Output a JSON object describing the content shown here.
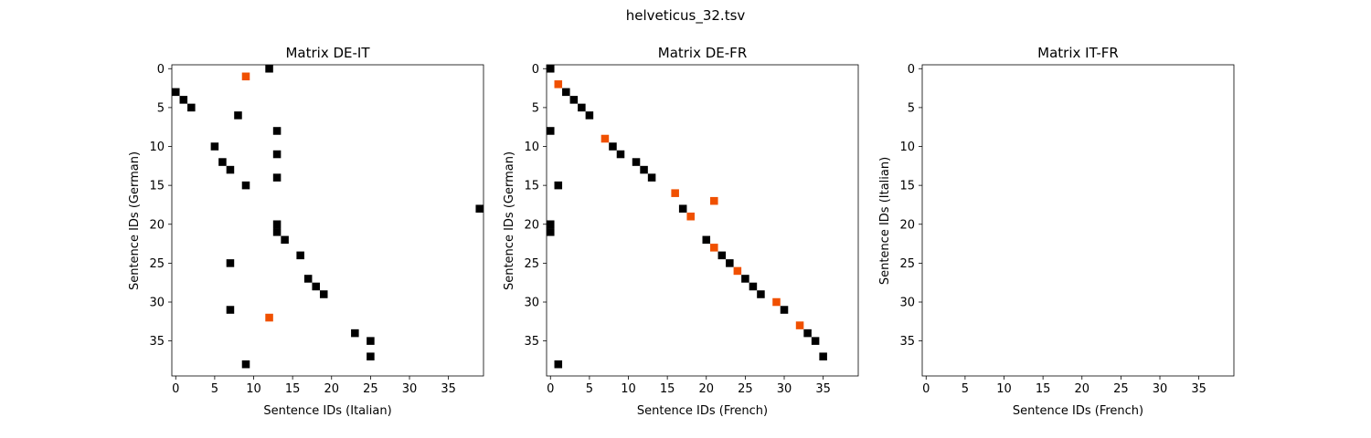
{
  "figure": {
    "title": "helveticus_32.tsv"
  },
  "colors": {
    "match": "#000000",
    "mismatch": "#f05000",
    "axes": "#000000",
    "background": "#ffffff"
  },
  "chart_data": [
    {
      "type": "heatmap",
      "title": "Matrix DE-IT",
      "xlabel": "Sentence IDs (Italian)",
      "ylabel": "Sentence IDs (German)",
      "xlim": [
        -0.5,
        39.5
      ],
      "ylim": [
        39.5,
        -0.5
      ],
      "xticks": [
        "0",
        "5",
        "10",
        "15",
        "20",
        "25",
        "30",
        "35"
      ],
      "yticks": [
        "0",
        "5",
        "10",
        "15",
        "20",
        "25",
        "30",
        "35"
      ],
      "cells": [
        {
          "x": 12,
          "y": 0,
          "c": "match"
        },
        {
          "x": 9,
          "y": 1,
          "c": "mismatch"
        },
        {
          "x": 0,
          "y": 3,
          "c": "match"
        },
        {
          "x": 1,
          "y": 4,
          "c": "match"
        },
        {
          "x": 2,
          "y": 5,
          "c": "match"
        },
        {
          "x": 8,
          "y": 6,
          "c": "match"
        },
        {
          "x": 13,
          "y": 8,
          "c": "match"
        },
        {
          "x": 5,
          "y": 10,
          "c": "match"
        },
        {
          "x": 13,
          "y": 11,
          "c": "match"
        },
        {
          "x": 6,
          "y": 12,
          "c": "match"
        },
        {
          "x": 7,
          "y": 13,
          "c": "match"
        },
        {
          "x": 13,
          "y": 14,
          "c": "match"
        },
        {
          "x": 9,
          "y": 15,
          "c": "match"
        },
        {
          "x": 39,
          "y": 18,
          "c": "match"
        },
        {
          "x": 13,
          "y": 20,
          "c": "match"
        },
        {
          "x": 13,
          "y": 21,
          "c": "match"
        },
        {
          "x": 14,
          "y": 22,
          "c": "match"
        },
        {
          "x": 16,
          "y": 24,
          "c": "match"
        },
        {
          "x": 7,
          "y": 25,
          "c": "match"
        },
        {
          "x": 17,
          "y": 27,
          "c": "match"
        },
        {
          "x": 18,
          "y": 28,
          "c": "match"
        },
        {
          "x": 19,
          "y": 29,
          "c": "match"
        },
        {
          "x": 7,
          "y": 31,
          "c": "match"
        },
        {
          "x": 12,
          "y": 32,
          "c": "mismatch"
        },
        {
          "x": 23,
          "y": 34,
          "c": "match"
        },
        {
          "x": 25,
          "y": 35,
          "c": "match"
        },
        {
          "x": 25,
          "y": 37,
          "c": "match"
        },
        {
          "x": 9,
          "y": 38,
          "c": "match"
        }
      ]
    },
    {
      "type": "heatmap",
      "title": "Matrix DE-FR",
      "xlabel": "Sentence IDs (French)",
      "ylabel": "Sentence IDs (German)",
      "xlim": [
        -0.5,
        39.5
      ],
      "ylim": [
        39.5,
        -0.5
      ],
      "xticks": [
        "0",
        "5",
        "10",
        "15",
        "20",
        "25",
        "30",
        "35"
      ],
      "yticks": [
        "0",
        "5",
        "10",
        "15",
        "20",
        "25",
        "30",
        "35"
      ],
      "cells": [
        {
          "x": 0,
          "y": 0,
          "c": "match"
        },
        {
          "x": 1,
          "y": 2,
          "c": "mismatch"
        },
        {
          "x": 2,
          "y": 3,
          "c": "match"
        },
        {
          "x": 3,
          "y": 4,
          "c": "match"
        },
        {
          "x": 4,
          "y": 5,
          "c": "match"
        },
        {
          "x": 5,
          "y": 6,
          "c": "match"
        },
        {
          "x": 0,
          "y": 8,
          "c": "match"
        },
        {
          "x": 7,
          "y": 9,
          "c": "mismatch"
        },
        {
          "x": 8,
          "y": 10,
          "c": "match"
        },
        {
          "x": 9,
          "y": 11,
          "c": "match"
        },
        {
          "x": 11,
          "y": 12,
          "c": "match"
        },
        {
          "x": 12,
          "y": 13,
          "c": "match"
        },
        {
          "x": 13,
          "y": 14,
          "c": "match"
        },
        {
          "x": 1,
          "y": 15,
          "c": "match"
        },
        {
          "x": 16,
          "y": 16,
          "c": "mismatch"
        },
        {
          "x": 21,
          "y": 17,
          "c": "mismatch"
        },
        {
          "x": 17,
          "y": 18,
          "c": "match"
        },
        {
          "x": 18,
          "y": 19,
          "c": "mismatch"
        },
        {
          "x": 0,
          "y": 20,
          "c": "match"
        },
        {
          "x": 0,
          "y": 21,
          "c": "match"
        },
        {
          "x": 20,
          "y": 22,
          "c": "match"
        },
        {
          "x": 21,
          "y": 23,
          "c": "mismatch"
        },
        {
          "x": 22,
          "y": 24,
          "c": "match"
        },
        {
          "x": 23,
          "y": 25,
          "c": "match"
        },
        {
          "x": 24,
          "y": 26,
          "c": "mismatch"
        },
        {
          "x": 25,
          "y": 27,
          "c": "match"
        },
        {
          "x": 26,
          "y": 28,
          "c": "match"
        },
        {
          "x": 27,
          "y": 29,
          "c": "match"
        },
        {
          "x": 29,
          "y": 30,
          "c": "mismatch"
        },
        {
          "x": 30,
          "y": 31,
          "c": "match"
        },
        {
          "x": 32,
          "y": 33,
          "c": "mismatch"
        },
        {
          "x": 33,
          "y": 34,
          "c": "match"
        },
        {
          "x": 34,
          "y": 35,
          "c": "match"
        },
        {
          "x": 35,
          "y": 37,
          "c": "match"
        },
        {
          "x": 1,
          "y": 38,
          "c": "match"
        }
      ]
    },
    {
      "type": "heatmap",
      "title": "Matrix IT-FR",
      "xlabel": "Sentence IDs (French)",
      "ylabel": "Sentence IDs (Italian)",
      "xlim": [
        -0.5,
        39.5
      ],
      "ylim": [
        39.5,
        -0.5
      ],
      "xticks": [
        "0",
        "5",
        "10",
        "15",
        "20",
        "25",
        "30",
        "35"
      ],
      "yticks": [
        "0",
        "5",
        "10",
        "15",
        "20",
        "25",
        "30",
        "35"
      ],
      "cells": []
    }
  ]
}
